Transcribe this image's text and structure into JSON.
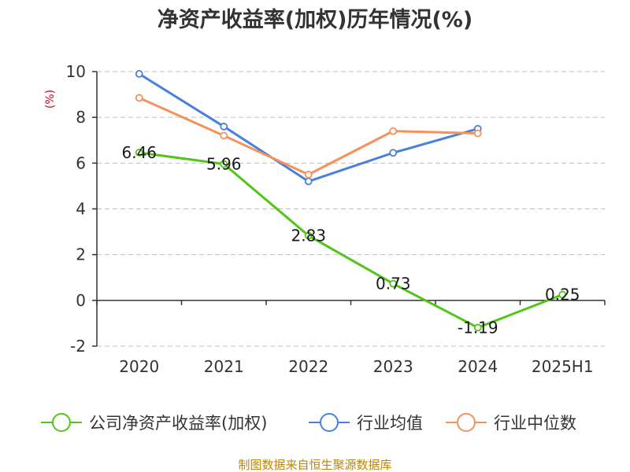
{
  "chart_data": {
    "type": "line",
    "title": "净资产收益率(加权)历年情况(%)",
    "ylabel": "(%)",
    "categories": [
      "2020",
      "2021",
      "2022",
      "2023",
      "2024",
      "2025H1"
    ],
    "ylim": [
      -2,
      10
    ],
    "yticks": [
      -2,
      0,
      2,
      4,
      6,
      8,
      10
    ],
    "grid": true,
    "legend_position": "bottom",
    "series": [
      {
        "name": "公司净资产收益率(加权)",
        "color": "#52c41a",
        "values": [
          6.46,
          5.96,
          2.83,
          0.73,
          -1.19,
          0.25
        ],
        "labels": [
          "6.46",
          "5.96",
          "2.83",
          "0.73",
          "-1.19",
          "0.25"
        ]
      },
      {
        "name": "行业均值",
        "color": "#4a7fdb",
        "values": [
          9.9,
          7.6,
          5.2,
          6.45,
          7.5,
          null
        ]
      },
      {
        "name": "行业中位数",
        "color": "#f5915a",
        "values": [
          8.85,
          7.2,
          5.5,
          7.4,
          7.3,
          null
        ]
      }
    ]
  },
  "source_text": "制图数据来自恒生聚源数据库"
}
